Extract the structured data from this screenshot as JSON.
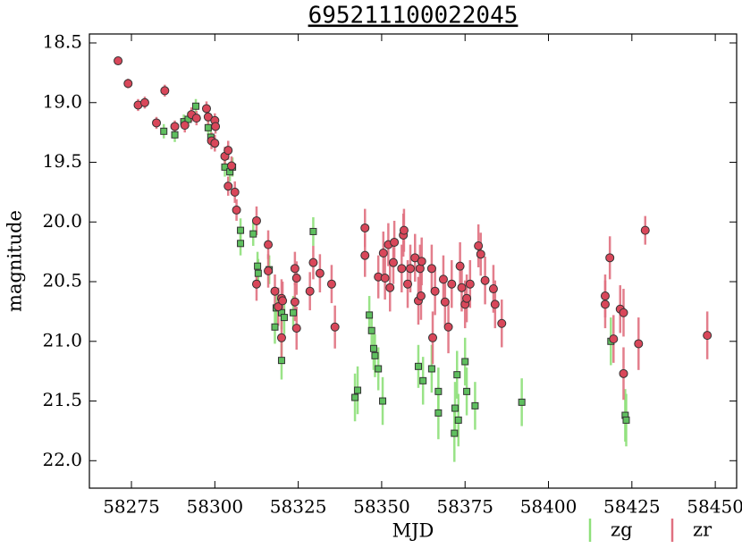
{
  "chart_data": {
    "type": "errorbar-scatter",
    "title": "695211100022045",
    "xlabel": "MJD",
    "ylabel": "magnitude",
    "xlim": [
      58262.4,
      58456.4
    ],
    "xticks": [
      58275,
      58300,
      58325,
      58350,
      58375,
      58400,
      58425,
      58450
    ],
    "ylim": [
      22.23,
      18.425
    ],
    "yticks": [
      18.5,
      {
        "value": 19,
        "label": "19.0"
      },
      19.5,
      {
        "value": 20,
        "label": "20.0"
      },
      20.5,
      {
        "value": 21,
        "label": "21.0"
      },
      21.5,
      {
        "value": 22,
        "label": "22.0"
      }
    ],
    "legend": "below-right",
    "series": [
      {
        "name": "zg",
        "color": "#5fbf5f",
        "errcolor": "#8ee07a",
        "marker": "square",
        "x": [
          58284.7,
          58288,
          58290.7,
          58292,
          58294.3,
          58298,
          58298.8,
          58303,
          58304.5,
          58305.3,
          58307.7,
          58307.7,
          58311.5,
          58312.8,
          58313,
          58316.3,
          58318,
          58318.4,
          58320,
          58320,
          58320.8,
          58323.5,
          58329.5,
          58342,
          58342.8,
          58346.3,
          58347,
          58347.6,
          58348,
          58349,
          58350.3,
          58361,
          58362.4,
          58365,
          58367,
          58367,
          58371.8,
          58372,
          58372.6,
          58373,
          58375,
          58375.5,
          58378,
          58392,
          58418.7,
          58423,
          58423.3
        ],
        "values": [
          19.24,
          19.27,
          19.16,
          19.14,
          19.03,
          19.21,
          19.29,
          19.54,
          19.58,
          19.54,
          20.07,
          20.18,
          20.1,
          20.37,
          20.43,
          20.4,
          20.88,
          20.72,
          20.76,
          21.16,
          20.8,
          20.76,
          20.08,
          21.47,
          21.41,
          20.78,
          20.91,
          21.06,
          21.12,
          21.23,
          21.5,
          21.21,
          21.33,
          21.23,
          21.42,
          21.6,
          21.77,
          21.56,
          21.28,
          21.66,
          21.17,
          21.42,
          21.54,
          21.51,
          21.0,
          21.62,
          21.66
        ],
        "errors": [
          0.06,
          0.06,
          0.06,
          0.06,
          0.06,
          0.06,
          0.07,
          0.08,
          0.08,
          0.08,
          0.1,
          0.1,
          0.1,
          0.12,
          0.12,
          0.12,
          0.14,
          0.14,
          0.14,
          0.16,
          0.14,
          0.14,
          0.12,
          0.2,
          0.2,
          0.16,
          0.16,
          0.18,
          0.18,
          0.18,
          0.2,
          0.18,
          0.2,
          0.2,
          0.2,
          0.22,
          0.24,
          0.22,
          0.2,
          0.22,
          0.2,
          0.2,
          0.2,
          0.2,
          0.2,
          0.22,
          0.22
        ]
      },
      {
        "name": "zr",
        "color": "#d9475a",
        "errcolor": "#e07080",
        "marker": "circle",
        "x": [
          58271,
          58274,
          58277,
          58279,
          58282.5,
          58285,
          58288,
          58291,
          58293,
          58294.5,
          58297.5,
          58298,
          58299,
          58300,
          58300.2,
          58300,
          58303,
          58304,
          58304,
          58305,
          58306,
          58306.5,
          58312.5,
          58312.5,
          58316,
          58316,
          58318,
          58319,
          58320,
          58320,
          58320.3,
          58324,
          58324.5,
          58324.5,
          58324,
          58328.5,
          58329.5,
          58331.5,
          58335,
          58336,
          58345,
          58345,
          58349,
          58350.5,
          58351,
          58352,
          58352.5,
          58353.5,
          58353.8,
          58356,
          58356.5,
          58356.7,
          58357.8,
          58358.6,
          58360,
          58361,
          58361.5,
          58361.8,
          58362,
          58365,
          58365.3,
          58366,
          58368.5,
          58369,
          58370,
          58371,
          58373.5,
          58374,
          58375,
          58375.5,
          58376.5,
          58379,
          58379.7,
          58381,
          58383.5,
          58384,
          58386,
          58417,
          58417,
          58418.4,
          58419.5,
          58421.5,
          58422.5,
          58422.5,
          58427,
          58429,
          58447.6
        ],
        "values": [
          18.65,
          18.84,
          19.02,
          19.0,
          19.17,
          18.9,
          19.2,
          19.19,
          19.1,
          19.13,
          19.05,
          19.12,
          19.32,
          19.15,
          19.2,
          19.34,
          19.45,
          19.4,
          19.7,
          19.53,
          19.75,
          19.9,
          19.99,
          20.52,
          20.19,
          20.41,
          20.58,
          20.71,
          20.64,
          20.97,
          20.66,
          20.39,
          20.47,
          20.89,
          20.67,
          20.58,
          20.34,
          20.43,
          20.52,
          20.88,
          20.05,
          20.28,
          20.46,
          20.26,
          20.47,
          20.19,
          20.55,
          20.34,
          20.17,
          20.39,
          20.11,
          20.07,
          20.52,
          20.39,
          20.3,
          20.66,
          20.39,
          20.62,
          20.33,
          20.39,
          20.97,
          20.58,
          20.48,
          20.67,
          20.88,
          20.52,
          20.37,
          20.55,
          20.69,
          20.64,
          20.52,
          20.2,
          20.27,
          20.49,
          20.56,
          20.69,
          20.85,
          20.62,
          20.69,
          20.3,
          20.98,
          20.73,
          20.76,
          21.27,
          21.02,
          20.07,
          20.95
        ],
        "errors": [
          0.03,
          0.04,
          0.05,
          0.05,
          0.05,
          0.05,
          0.05,
          0.06,
          0.06,
          0.06,
          0.06,
          0.06,
          0.07,
          0.06,
          0.06,
          0.07,
          0.08,
          0.08,
          0.08,
          0.08,
          0.09,
          0.09,
          0.12,
          0.14,
          0.12,
          0.14,
          0.14,
          0.16,
          0.16,
          0.16,
          0.16,
          0.14,
          0.14,
          0.18,
          0.16,
          0.16,
          0.14,
          0.16,
          0.16,
          0.18,
          0.16,
          0.18,
          0.18,
          0.18,
          0.18,
          0.18,
          0.2,
          0.18,
          0.18,
          0.2,
          0.18,
          0.18,
          0.2,
          0.2,
          0.2,
          0.2,
          0.2,
          0.2,
          0.2,
          0.2,
          0.22,
          0.2,
          0.2,
          0.2,
          0.22,
          0.2,
          0.2,
          0.2,
          0.2,
          0.2,
          0.2,
          0.18,
          0.18,
          0.2,
          0.2,
          0.2,
          0.2,
          0.18,
          0.2,
          0.18,
          0.2,
          0.2,
          0.2,
          0.22,
          0.22,
          0.12,
          0.2
        ]
      }
    ]
  }
}
